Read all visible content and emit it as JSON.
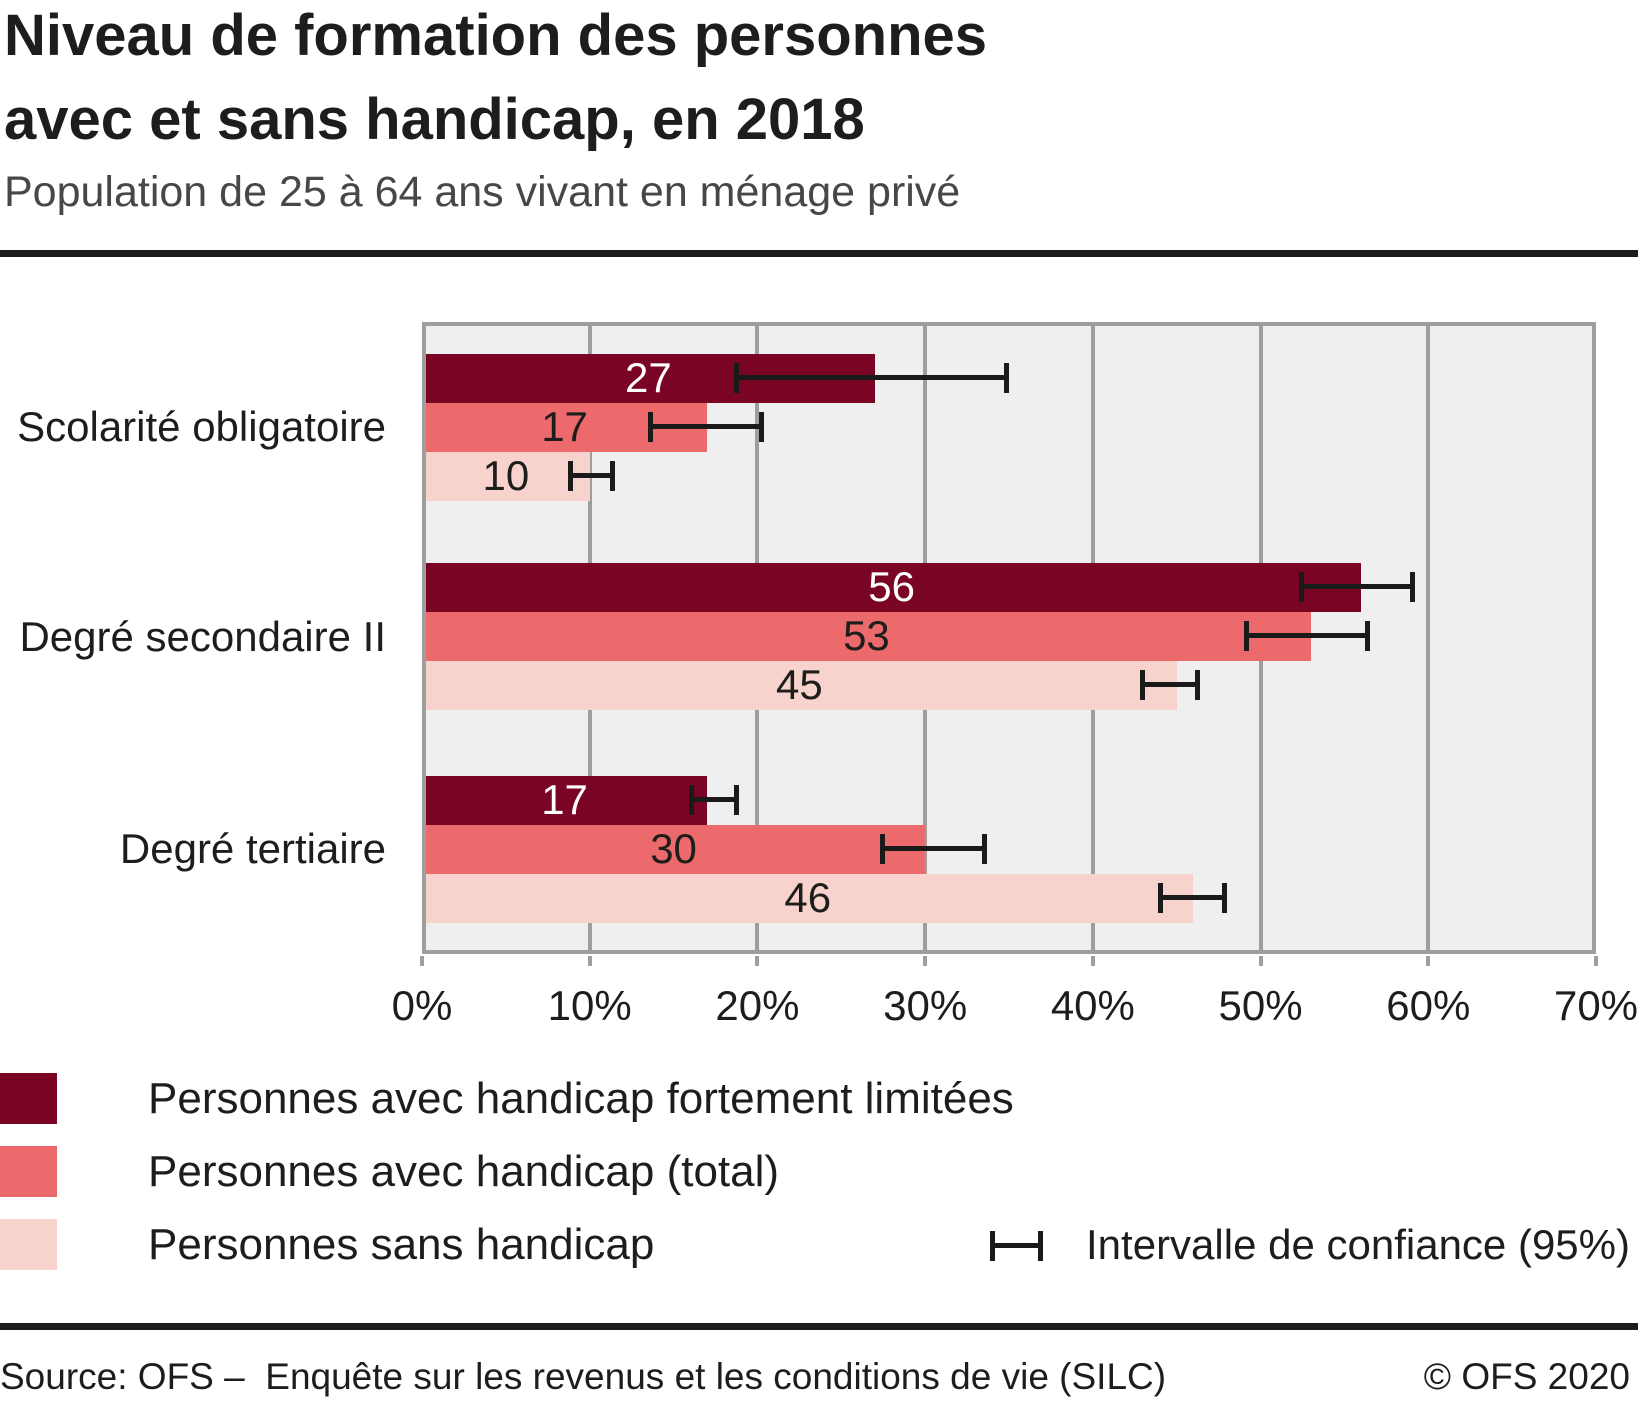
{
  "header": {
    "title_line1": "Niveau de formation des personnes",
    "title_line2": "avec et sans handicap, en 2018",
    "subtitle": "Population de 25 à 64 ans vivant en ménage privé"
  },
  "chart_data": {
    "type": "bar",
    "orientation": "horizontal",
    "title": "Niveau de formation des personnes avec et sans handicap, en 2018",
    "subtitle": "Population de 25 à 64 ans vivant en ménage privé",
    "xlabel": "",
    "ylabel": "",
    "xlim": [
      0,
      70
    ],
    "x_ticks": [
      "0%",
      "10%",
      "20%",
      "30%",
      "40%",
      "50%",
      "60%",
      "70%"
    ],
    "grid": true,
    "legend_position": "bottom-left",
    "plot_background": "#efefef",
    "gridline_color": "#9e9e9e",
    "error_bar_color": "#1a1a1a",
    "categories": [
      "Scolarité obligatoire",
      "Degré secondaire II",
      "Degré tertiaire"
    ],
    "series": [
      {
        "name": "Personnes avec handicap fortement limitées",
        "color": "#7A0423",
        "label_color": "#FFFFFF",
        "values": [
          27,
          56,
          17
        ],
        "ci95": [
          [
            18.6,
            35.0
          ],
          [
            52.3,
            59.2
          ],
          [
            15.9,
            18.9
          ]
        ]
      },
      {
        "name": "Personnes avec handicap (total)",
        "color": "#ED6A6C",
        "label_color": "#1D1D1B",
        "values": [
          17,
          53,
          30
        ],
        "ci95": [
          [
            13.5,
            20.4
          ],
          [
            49.0,
            56.5
          ],
          [
            27.3,
            33.7
          ]
        ]
      },
      {
        "name": "Personnes sans handicap",
        "color": "#F8D2CC",
        "label_color": "#1D1D1B",
        "values": [
          10,
          45,
          46
        ],
        "ci95": [
          [
            8.7,
            11.5
          ],
          [
            42.8,
            46.4
          ],
          [
            43.9,
            48.0
          ]
        ]
      }
    ],
    "error_bar_label": "Intervalle de confiance (95%)"
  },
  "legend": {
    "ci_label": "Intervalle de confiance (95%)"
  },
  "footer": {
    "source": "Source: OFS –  Enquête sur les revenus et les conditions de vie (SILC)",
    "copyright": "© OFS 2020"
  }
}
